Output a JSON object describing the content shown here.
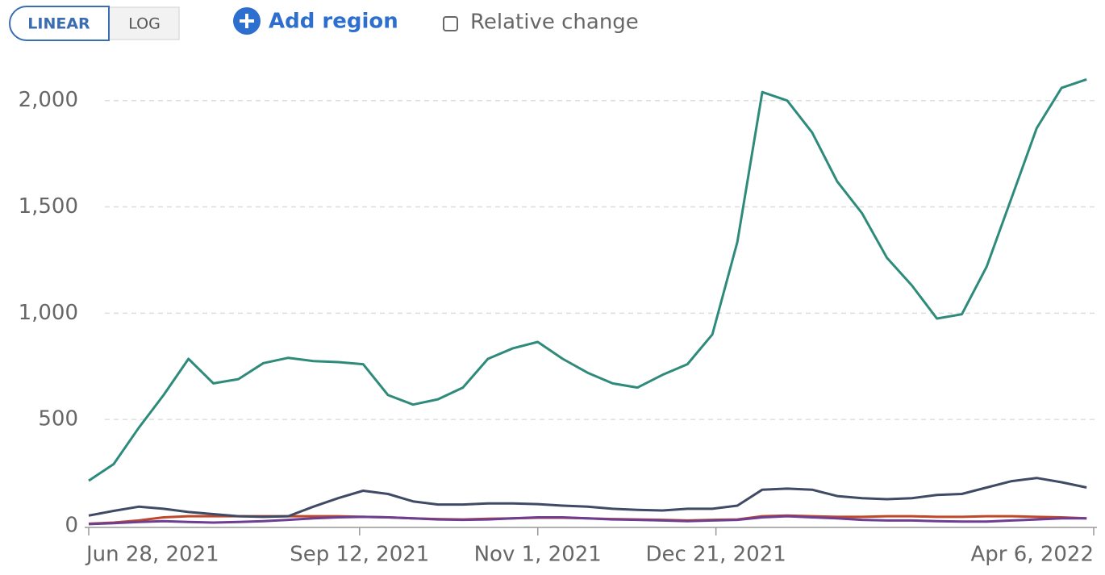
{
  "controls": {
    "scale_options": [
      "LINEAR",
      "LOG"
    ],
    "add_region": "Add region",
    "relative_change": "Relative change"
  },
  "chart_data": {
    "type": "line",
    "x": [
      "2021-06-28",
      "2021-07-05",
      "2021-07-12",
      "2021-07-19",
      "2021-07-26",
      "2021-08-02",
      "2021-08-09",
      "2021-08-16",
      "2021-08-23",
      "2021-08-30",
      "2021-09-06",
      "2021-09-13",
      "2021-09-20",
      "2021-09-27",
      "2021-10-04",
      "2021-10-11",
      "2021-10-18",
      "2021-10-25",
      "2021-11-01",
      "2021-11-08",
      "2021-11-15",
      "2021-11-22",
      "2021-11-29",
      "2021-12-06",
      "2021-12-13",
      "2021-12-20",
      "2021-12-27",
      "2022-01-03",
      "2022-01-10",
      "2022-01-17",
      "2022-01-24",
      "2022-01-31",
      "2022-02-07",
      "2022-02-14",
      "2022-02-21",
      "2022-02-28",
      "2022-03-07",
      "2022-03-14",
      "2022-03-21",
      "2022-03-28",
      "2022-04-04"
    ],
    "series": [
      {
        "color": "#2e8b7b",
        "values": [
          212,
          290,
          460,
          615,
          785,
          670,
          690,
          765,
          790,
          775,
          770,
          760,
          615,
          570,
          595,
          650,
          785,
          835,
          865,
          785,
          720,
          670,
          650,
          710,
          760,
          900,
          1335,
          2040,
          2000,
          1850,
          1620,
          1470,
          1260,
          1130,
          975,
          995,
          1220,
          1545,
          1870,
          2060,
          2100
        ]
      },
      {
        "color": "#3f4a65",
        "values": [
          48,
          70,
          90,
          80,
          65,
          55,
          45,
          42,
          45,
          90,
          130,
          165,
          150,
          115,
          100,
          100,
          105,
          105,
          102,
          95,
          90,
          80,
          75,
          72,
          80,
          80,
          95,
          170,
          175,
          170,
          140,
          130,
          125,
          130,
          145,
          150,
          180,
          210,
          225,
          205,
          180
        ]
      },
      {
        "color": "#6d3e91",
        "values": [
          8,
          12,
          18,
          22,
          18,
          15,
          18,
          22,
          28,
          35,
          40,
          42,
          40,
          35,
          30,
          28,
          30,
          35,
          40,
          40,
          35,
          30,
          28,
          25,
          22,
          25,
          28,
          40,
          45,
          40,
          35,
          28,
          25,
          25,
          22,
          20,
          20,
          25,
          30,
          35,
          35
        ]
      },
      {
        "color": "#c0482a",
        "values": [
          10,
          15,
          25,
          40,
          45,
          45,
          45,
          45,
          45,
          45,
          45,
          42,
          40,
          35,
          32,
          30,
          33,
          35,
          38,
          38,
          35,
          32,
          30,
          28,
          25,
          28,
          30,
          45,
          48,
          45,
          42,
          42,
          45,
          45,
          42,
          42,
          45,
          45,
          42,
          40,
          35
        ]
      }
    ],
    "xlim": [
      "2021-06-28",
      "2022-04-06"
    ],
    "xticks": [
      {
        "value": "2021-06-28",
        "label": "Jun 28, 2021"
      },
      {
        "value": "2021-09-12",
        "label": "Sep 12, 2021"
      },
      {
        "value": "2021-11-01",
        "label": "Nov 1, 2021"
      },
      {
        "value": "2021-12-21",
        "label": "Dec 21, 2021"
      },
      {
        "value": "2022-04-06",
        "label": "Apr 6, 2022"
      }
    ],
    "ylim": [
      0,
      2200
    ],
    "yticks": [
      0,
      500,
      {
        "value": 1000,
        "label": "1,000"
      },
      {
        "value": 1500,
        "label": "1,500"
      },
      {
        "value": 2000,
        "label": "2,000"
      }
    ],
    "grid": true
  }
}
